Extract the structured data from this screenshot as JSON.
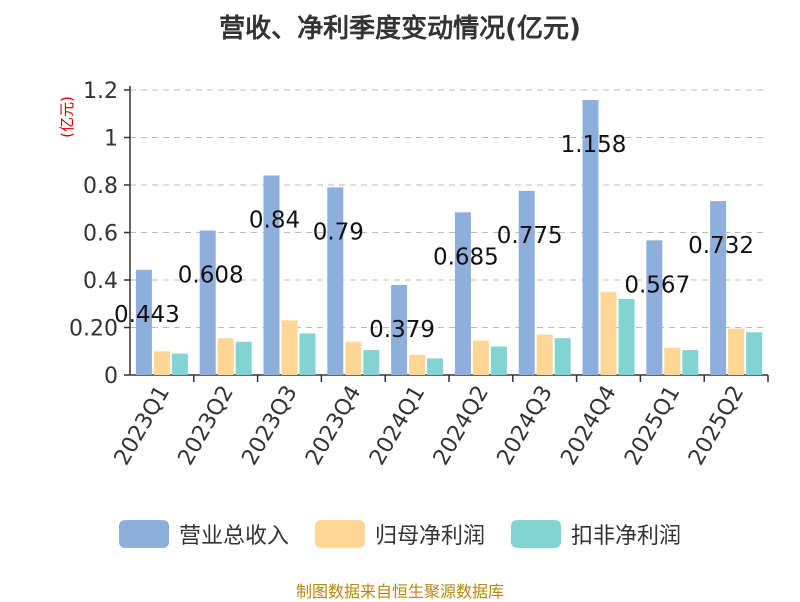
{
  "title": "营收、净利季度变动情况(亿元)",
  "source": "制图数据来自恒生聚源数据库",
  "colors": {
    "revenue": "#8eaedb",
    "net_profit": "#ffd694",
    "deducted_profit": "#82d3d3",
    "axis": "#333333",
    "grid": "#bbbbbb",
    "unit_label": "#cc0000"
  },
  "legend": [
    {
      "key": "revenue",
      "label": "营业总收入"
    },
    {
      "key": "net_profit",
      "label": "归母净利润"
    },
    {
      "key": "deducted_profit",
      "label": "扣非净利润"
    }
  ],
  "chart_data": {
    "type": "bar",
    "title": "营收、净利季度变动情况(亿元)",
    "ylabel": "(亿元)",
    "xlabel": "",
    "ylim": [
      0,
      1.2
    ],
    "yticks": [
      "0",
      "0.20",
      "0.4",
      "0.6",
      "0.8",
      "1",
      "1.2"
    ],
    "grid": true,
    "legend_position": "bottom",
    "categories": [
      "2023Q1",
      "2023Q2",
      "2023Q3",
      "2023Q4",
      "2024Q1",
      "2024Q2",
      "2024Q3",
      "2024Q4",
      "2025Q1",
      "2025Q2"
    ],
    "series": [
      {
        "name": "营业总收入",
        "color": "#8eaedb",
        "values": [
          0.443,
          0.608,
          0.84,
          0.79,
          0.379,
          0.685,
          0.775,
          1.158,
          0.567,
          0.732
        ]
      },
      {
        "name": "归母净利润",
        "color": "#ffd694",
        "values": [
          0.1,
          0.155,
          0.23,
          0.14,
          0.085,
          0.145,
          0.17,
          0.35,
          0.115,
          0.195
        ]
      },
      {
        "name": "扣非净利润",
        "color": "#82d3d3",
        "values": [
          0.09,
          0.14,
          0.175,
          0.105,
          0.07,
          0.12,
          0.155,
          0.32,
          0.105,
          0.18
        ]
      }
    ],
    "data_labels": [
      "0.443",
      "0.608",
      "0.84",
      "0.79",
      "0.379",
      "0.685",
      "0.775",
      "1.158",
      "0.567",
      "0.732"
    ]
  }
}
